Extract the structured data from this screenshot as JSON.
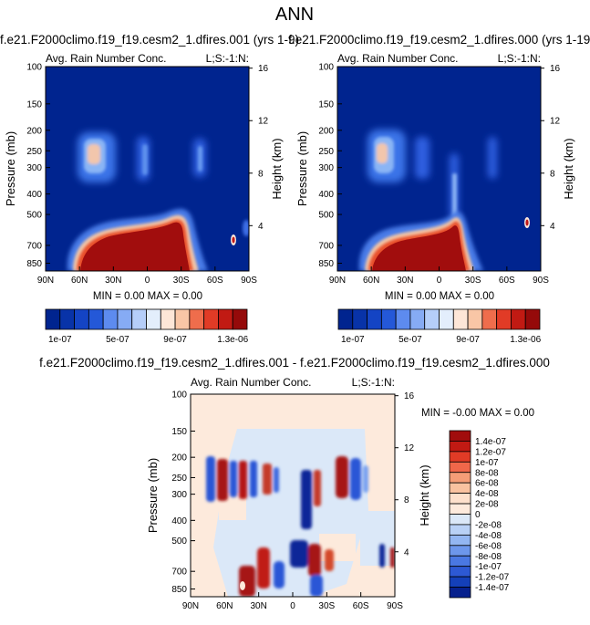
{
  "page_title": "ANN",
  "colors": {
    "deep_blue": "#00248f",
    "positive_strong": "#a10d0d",
    "negative_strong": "#06208d",
    "background_fill": "#fdeadc"
  },
  "chart_data": [
    {
      "type": "heatmap",
      "title": "f.e21.F2000climo.f19_f19.cesm2_1.dfires.001 (yrs 1-9)",
      "subtitle_left": "Avg. Rain Number Conc.",
      "subtitle_right": "L;S:-1:N:",
      "ylabel": "Pressure (mb)",
      "ylabel_right": "Height (km)",
      "x_ticks": [
        "90N",
        "60N",
        "30N",
        "0",
        "30S",
        "60S",
        "90S"
      ],
      "x_values": [
        90,
        60,
        30,
        0,
        -30,
        -60,
        -90
      ],
      "y_ticks": [
        "100",
        "150",
        "200",
        "250",
        "300",
        "400",
        "500",
        "700",
        "850"
      ],
      "y_values": [
        100,
        150,
        200,
        250,
        300,
        400,
        500,
        700,
        850
      ],
      "ylim": [
        100,
        925
      ],
      "height_ticks": [
        "16",
        "12",
        "8",
        "4"
      ],
      "height_values": [
        16,
        12,
        8,
        4
      ],
      "stats_text": "MIN =  0.00  MAX =  0.00",
      "colorbar_labels": [
        "1e-07",
        "5e-07",
        "9e-07",
        "1.3e-06"
      ],
      "colorbar_levels": 14,
      "features": [
        {
          "name": "lower-tropospheric rain",
          "lat_from": 60,
          "lat_to": -30,
          "p_top": 500,
          "p_bottom": 925,
          "level": "max"
        },
        {
          "name": "upper band NH midlat",
          "lat_from": 58,
          "lat_to": 42,
          "p_top": 190,
          "p_bottom": 340,
          "level": "mid"
        },
        {
          "name": "upper band tropics",
          "lat_from": 5,
          "lat_to": -5,
          "p_top": 190,
          "p_bottom": 340,
          "level": "low"
        },
        {
          "name": "upper band SH midlat",
          "lat_from": -40,
          "lat_to": -50,
          "p_top": 200,
          "p_bottom": 330,
          "level": "low"
        },
        {
          "name": "polar spot",
          "lat_from": -72,
          "lat_to": -78,
          "p_top": 580,
          "p_bottom": 700,
          "level": "high"
        }
      ]
    },
    {
      "type": "heatmap",
      "title": "f.e21.F2000climo.f19_f19.cesm2_1.dfires.000 (yrs 1-19)",
      "subtitle_left": "Avg. Rain Number Conc.",
      "subtitle_right": "L;S:-1:N:",
      "ylabel": "Pressure (mb)",
      "ylabel_right": "Height (km)",
      "x_ticks": [
        "90N",
        "60N",
        "30N",
        "0",
        "30S",
        "60S",
        "90S"
      ],
      "x_values": [
        90,
        60,
        30,
        0,
        -30,
        -60,
        -90
      ],
      "y_ticks": [
        "100",
        "150",
        "200",
        "250",
        "300",
        "400",
        "500",
        "700",
        "850"
      ],
      "y_values": [
        100,
        150,
        200,
        250,
        300,
        400,
        500,
        700,
        850
      ],
      "ylim": [
        100,
        925
      ],
      "height_ticks": [
        "16",
        "12",
        "8",
        "4"
      ],
      "height_values": [
        16,
        12,
        8,
        4
      ],
      "stats_text": "MIN =  0.00  MAX =  0.00",
      "colorbar_labels": [
        "1e-07",
        "5e-07",
        "9e-07",
        "1.3e-06"
      ],
      "colorbar_levels": 14,
      "features": [
        {
          "name": "lower-tropospheric rain",
          "lat_from": 60,
          "lat_to": -30,
          "p_top": 500,
          "p_bottom": 925,
          "level": "max"
        },
        {
          "name": "upper band NH midlat",
          "lat_from": 58,
          "lat_to": 42,
          "p_top": 190,
          "p_bottom": 340,
          "level": "mid"
        },
        {
          "name": "upper band tropics",
          "lat_from": 5,
          "lat_to": -5,
          "p_top": 190,
          "p_bottom": 340,
          "level": "low"
        },
        {
          "name": "upper band SH midlat",
          "lat_from": -40,
          "lat_to": -50,
          "p_top": 200,
          "p_bottom": 330,
          "level": "low"
        },
        {
          "name": "polar spot",
          "lat_from": -72,
          "lat_to": -78,
          "p_top": 560,
          "p_bottom": 640,
          "level": "high"
        }
      ]
    },
    {
      "type": "heatmap",
      "title": "f.e21.F2000climo.f19_f19.cesm2_1.dfires.001 - f.e21.F2000climo.f19_f19.cesm2_1.dfires.000",
      "subtitle_left": "Avg. Rain Number Conc.",
      "subtitle_right": "L;S:-1:N:",
      "ylabel": "Pressure (mb)",
      "ylabel_right": "Height (km)",
      "x_ticks": [
        "90N",
        "60N",
        "30N",
        "0",
        "30S",
        "60S",
        "90S"
      ],
      "x_values": [
        90,
        60,
        30,
        0,
        -30,
        -60,
        -90
      ],
      "y_ticks": [
        "100",
        "150",
        "200",
        "250",
        "300",
        "400",
        "500",
        "700",
        "850"
      ],
      "y_values": [
        100,
        150,
        200,
        250,
        300,
        400,
        500,
        700,
        850
      ],
      "ylim": [
        100,
        925
      ],
      "height_ticks": [
        "16",
        "12",
        "8",
        "4"
      ],
      "height_values": [
        16,
        12,
        8,
        4
      ],
      "stats_text": "MIN = -0.00  MAX =   0.00",
      "colorbar_labels": [
        "1.4e-07",
        "1.2e-07",
        "1e-07",
        "8e-08",
        "6e-08",
        "4e-08",
        "2e-08",
        "0",
        "-2e-08",
        "-4e-08",
        "-6e-08",
        "-8e-08",
        "-1e-07",
        "-1.2e-07",
        "-1.4e-07"
      ],
      "colorbar_levels": 16
    }
  ]
}
